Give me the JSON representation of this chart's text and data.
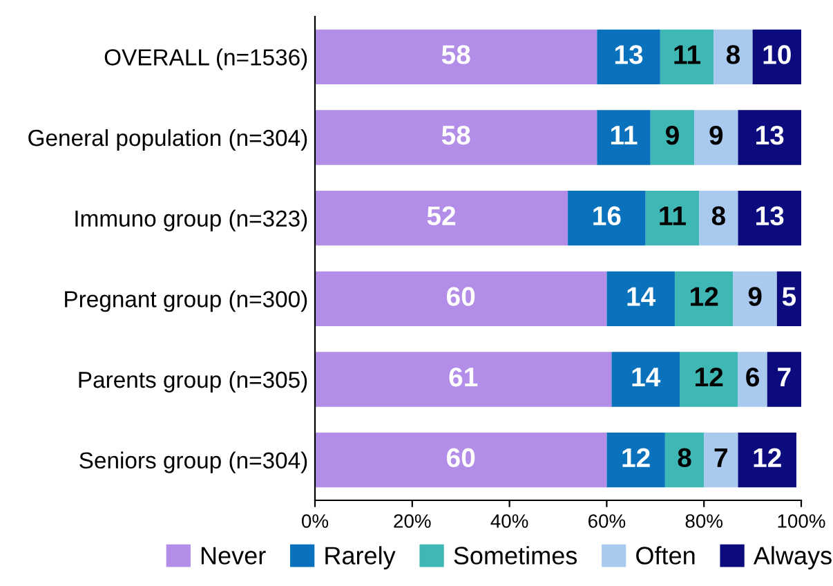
{
  "chart_data": {
    "type": "bar",
    "orientation": "horizontal",
    "stacked": true,
    "data_labels": true,
    "legend": "bottom",
    "grid": false,
    "categories": [
      "OVERALL (n=1536)",
      "General population (n=304)",
      "Immuno group (n=323)",
      "Pregnant group (n=300)",
      "Parents group (n=305)",
      "Seniors group (n=304)"
    ],
    "series": [
      {
        "name": "Never",
        "color": "#b38ee8",
        "values": [
          58,
          58,
          52,
          60,
          61,
          60
        ]
      },
      {
        "name": "Rarely",
        "color": "#0a72bc",
        "values": [
          13,
          11,
          16,
          14,
          14,
          12
        ]
      },
      {
        "name": "Sometimes",
        "color": "#3fb7b5",
        "values": [
          11,
          9,
          11,
          12,
          12,
          8
        ]
      },
      {
        "name": "Often",
        "color": "#a9c9ef",
        "values": [
          8,
          9,
          8,
          9,
          6,
          7
        ]
      },
      {
        "name": "Always",
        "color": "#0b0b7e",
        "values": [
          10,
          13,
          13,
          5,
          7,
          12
        ]
      }
    ],
    "xlim": [
      0,
      100
    ],
    "xticks": [
      {
        "value": 0,
        "label": "0%"
      },
      {
        "value": 20,
        "label": "20%"
      },
      {
        "value": 40,
        "label": "40%"
      },
      {
        "value": 60,
        "label": "60%"
      },
      {
        "value": 80,
        "label": "80%"
      },
      {
        "value": 100,
        "label": "100%"
      }
    ]
  }
}
